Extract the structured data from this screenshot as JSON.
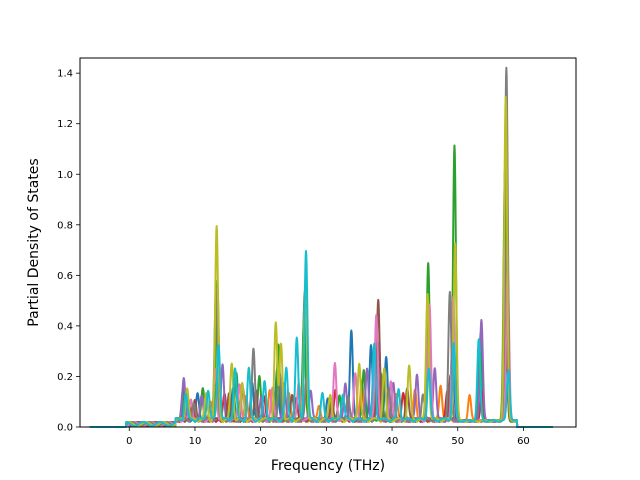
{
  "chart_data": {
    "type": "line",
    "title": "",
    "xlabel": "Frequency (THz)",
    "ylabel": "Partial Density of States",
    "xlim": [
      -7.5,
      68.0
    ],
    "ylim": [
      0.0,
      1.46
    ],
    "xticks": [
      0,
      10,
      20,
      30,
      40,
      50,
      60
    ],
    "yticks": [
      0.0,
      0.2,
      0.4,
      0.6,
      0.8,
      1.0,
      1.2,
      1.4
    ],
    "xtick_labels": [
      "0",
      "10",
      "20",
      "30",
      "40",
      "50",
      "60"
    ],
    "ytick_labels": [
      "0.0",
      "0.2",
      "0.4",
      "0.6",
      "0.8",
      "1.0",
      "1.2",
      "1.4"
    ],
    "grid": false,
    "legend": "none",
    "x_start": -6.0,
    "x_end": 64.5,
    "series": [
      {
        "color": "#1f77b4",
        "peaks": [
          [
            8.2,
            0.12
          ],
          [
            10.4,
            0.1
          ],
          [
            13.3,
            0.45
          ],
          [
            15.8,
            0.12
          ],
          [
            18.7,
            0.15
          ],
          [
            22.5,
            0.2
          ],
          [
            26.7,
            0.5
          ],
          [
            30.2,
            0.08
          ],
          [
            33.8,
            0.35
          ],
          [
            36.8,
            0.3
          ],
          [
            39.1,
            0.25
          ],
          [
            45.6,
            0.3
          ],
          [
            49.2,
            0.3
          ],
          [
            53.5,
            0.35
          ],
          [
            57.3,
            0.9
          ]
        ]
      },
      {
        "color": "#ff7f0e",
        "peaks": [
          [
            9.0,
            0.08
          ],
          [
            12.4,
            0.08
          ],
          [
            17.8,
            0.1
          ],
          [
            21.4,
            0.12
          ],
          [
            24.3,
            0.1
          ],
          [
            28.9,
            0.06
          ],
          [
            35.4,
            0.15
          ],
          [
            40.6,
            0.1
          ],
          [
            43.5,
            0.12
          ],
          [
            47.4,
            0.14
          ],
          [
            51.8,
            0.1
          ],
          [
            57.4,
            0.6
          ]
        ]
      },
      {
        "color": "#2ca02c",
        "peaks": [
          [
            8.4,
            0.1
          ],
          [
            11.2,
            0.12
          ],
          [
            13.4,
            0.55
          ],
          [
            16.3,
            0.18
          ],
          [
            19.8,
            0.17
          ],
          [
            22.7,
            0.3
          ],
          [
            26.6,
            0.4
          ],
          [
            32.0,
            0.1
          ],
          [
            35.7,
            0.2
          ],
          [
            38.3,
            0.18
          ],
          [
            45.5,
            0.62
          ],
          [
            49.5,
            1.08
          ],
          [
            53.4,
            0.3
          ],
          [
            57.2,
            1.0
          ]
        ]
      },
      {
        "color": "#d62728",
        "peaks": [
          [
            9.6,
            0.06
          ],
          [
            14.5,
            0.1
          ],
          [
            20.5,
            0.1
          ],
          [
            25.4,
            0.08
          ],
          [
            31.4,
            0.12
          ],
          [
            37.5,
            0.22
          ],
          [
            41.7,
            0.1
          ],
          [
            48.4,
            0.12
          ],
          [
            53.7,
            0.12
          ],
          [
            57.5,
            0.5
          ]
        ]
      },
      {
        "color": "#9467bd",
        "peaks": [
          [
            8.3,
            0.16
          ],
          [
            11.0,
            0.1
          ],
          [
            14.2,
            0.22
          ],
          [
            17.3,
            0.12
          ],
          [
            20.1,
            0.1
          ],
          [
            23.6,
            0.15
          ],
          [
            27.6,
            0.12
          ],
          [
            32.9,
            0.15
          ],
          [
            36.2,
            0.2
          ],
          [
            38.0,
            0.3
          ],
          [
            40.2,
            0.15
          ],
          [
            43.8,
            0.18
          ],
          [
            46.5,
            0.2
          ],
          [
            53.6,
            0.4
          ],
          [
            57.5,
            0.7
          ]
        ]
      },
      {
        "color": "#8c564b",
        "peaks": [
          [
            10.0,
            0.08
          ],
          [
            15.2,
            0.1
          ],
          [
            19.3,
            0.12
          ],
          [
            24.8,
            0.1
          ],
          [
            30.8,
            0.08
          ],
          [
            37.9,
            0.48
          ],
          [
            42.3,
            0.12
          ],
          [
            48.9,
            0.18
          ],
          [
            57.3,
            0.4
          ]
        ]
      },
      {
        "color": "#e377c2",
        "peaks": [
          [
            9.4,
            0.08
          ],
          [
            13.1,
            0.2
          ],
          [
            16.8,
            0.14
          ],
          [
            21.8,
            0.12
          ],
          [
            25.8,
            0.14
          ],
          [
            31.3,
            0.22
          ],
          [
            34.4,
            0.18
          ],
          [
            37.6,
            0.42
          ],
          [
            39.8,
            0.15
          ],
          [
            45.7,
            0.45
          ],
          [
            49.3,
            0.48
          ],
          [
            57.6,
            0.6
          ]
        ]
      },
      {
        "color": "#7f7f7f",
        "peaks": [
          [
            9.8,
            0.06
          ],
          [
            13.2,
            0.52
          ],
          [
            18.9,
            0.28
          ],
          [
            22.9,
            0.18
          ],
          [
            27.0,
            0.16
          ],
          [
            33.3,
            0.1
          ],
          [
            39.5,
            0.12
          ],
          [
            44.7,
            0.1
          ],
          [
            48.8,
            0.5
          ],
          [
            57.4,
            1.4
          ]
        ]
      },
      {
        "color": "#bcbd22",
        "peaks": [
          [
            8.8,
            0.13
          ],
          [
            11.7,
            0.1
          ],
          [
            13.3,
            0.76
          ],
          [
            15.6,
            0.22
          ],
          [
            17.2,
            0.14
          ],
          [
            22.3,
            0.38
          ],
          [
            23.1,
            0.3
          ],
          [
            26.8,
            0.55
          ],
          [
            30.6,
            0.1
          ],
          [
            35.0,
            0.22
          ],
          [
            38.8,
            0.2
          ],
          [
            42.6,
            0.21
          ],
          [
            45.4,
            0.5
          ],
          [
            49.6,
            0.7
          ],
          [
            57.3,
            1.28
          ]
        ]
      },
      {
        "color": "#17becf",
        "peaks": [
          [
            8.6,
            0.1
          ],
          [
            12.0,
            0.12
          ],
          [
            13.6,
            0.3
          ],
          [
            16.1,
            0.2
          ],
          [
            18.2,
            0.2
          ],
          [
            20.6,
            0.15
          ],
          [
            23.9,
            0.2
          ],
          [
            25.5,
            0.32
          ],
          [
            26.9,
            0.67
          ],
          [
            29.4,
            0.1
          ],
          [
            32.5,
            0.1
          ],
          [
            37.3,
            0.3
          ],
          [
            41.0,
            0.12
          ],
          [
            45.6,
            0.2
          ],
          [
            49.4,
            0.3
          ],
          [
            53.2,
            0.32
          ],
          [
            57.7,
            0.2
          ]
        ]
      }
    ]
  }
}
